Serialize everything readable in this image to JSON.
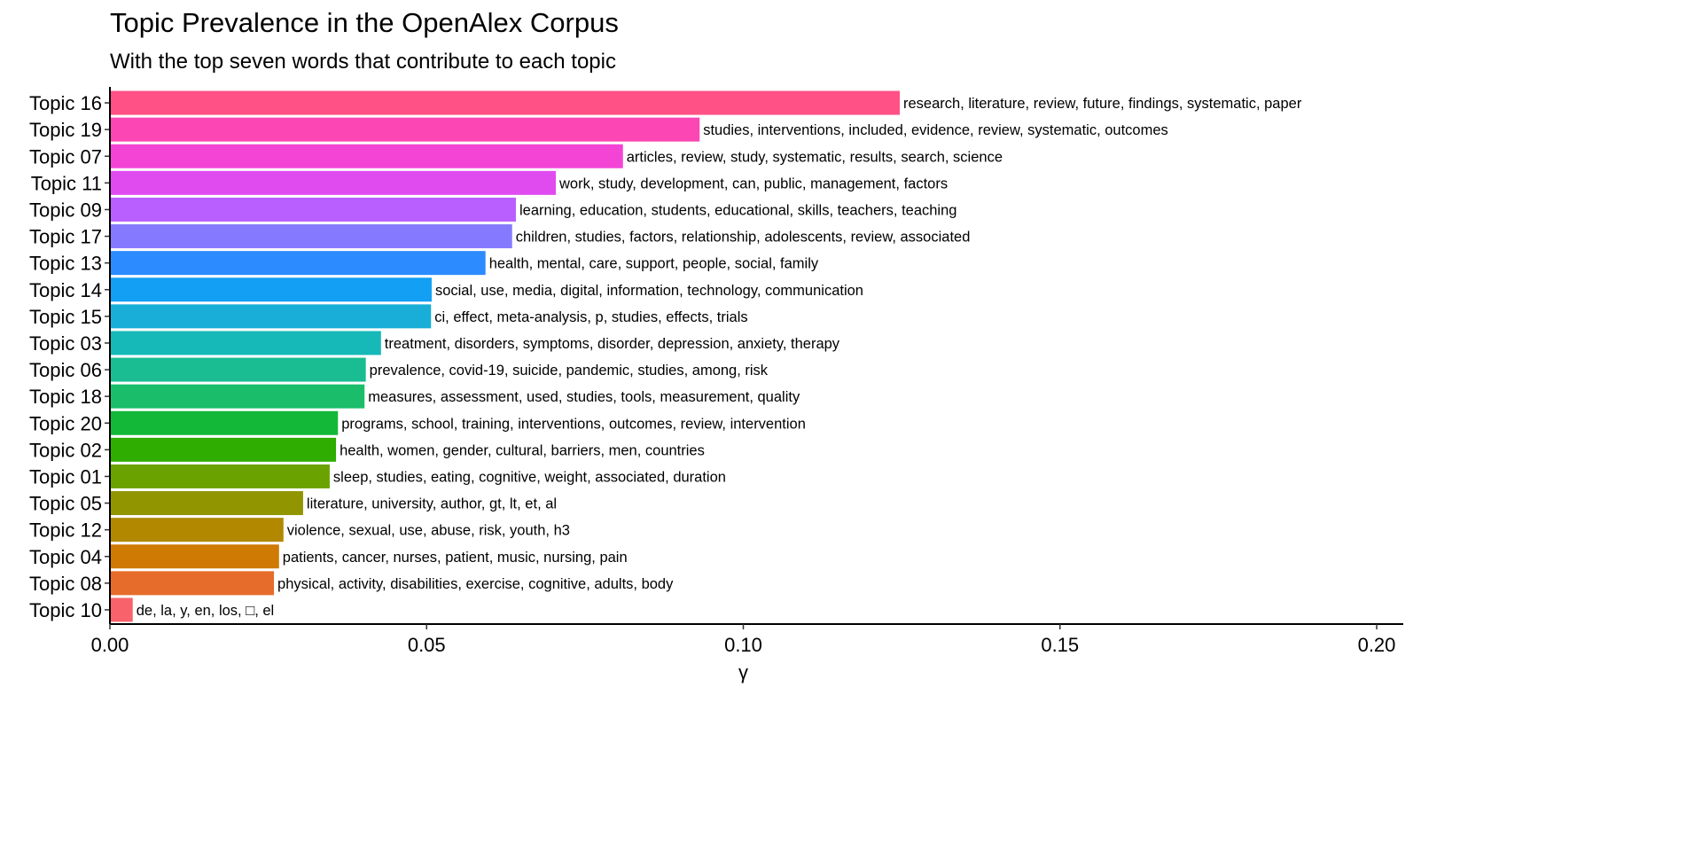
{
  "chart_data": {
    "type": "bar",
    "orientation": "horizontal",
    "title": "Topic Prevalence in the OpenAlex Corpus",
    "subtitle": "With the top seven words that contribute to each topic",
    "xlabel": "γ",
    "ylabel": "",
    "xlim": [
      0,
      0.2
    ],
    "xticks": [
      "0.00",
      "0.05",
      "0.10",
      "0.15",
      "0.20"
    ],
    "xtick_values": [
      0,
      0.05,
      0.1,
      0.15,
      0.2
    ],
    "grid": false,
    "bars": [
      {
        "category": "Topic 16",
        "value": 0.1247,
        "label": "research, literature, review, future, findings, systematic, paper",
        "color": "#FF5185"
      },
      {
        "category": "Topic 19",
        "value": 0.0931,
        "label": "studies, interventions, included, evidence, review, systematic, outcomes",
        "color": "#FB46B4"
      },
      {
        "category": "Topic 07",
        "value": 0.081,
        "label": "articles, review, study, systematic, results, search, science",
        "color": "#F344D6"
      },
      {
        "category": "Topic 11",
        "value": 0.0704,
        "label": "work, study, development, can, public, management, factors",
        "color": "#E04BF0"
      },
      {
        "category": "Topic 09",
        "value": 0.0641,
        "label": "learning, education, students, educational, skills, teachers, teaching",
        "color": "#BA5FFF"
      },
      {
        "category": "Topic 17",
        "value": 0.0635,
        "label": "children, studies, factors, relationship, adolescents, review, associated",
        "color": "#8579FF"
      },
      {
        "category": "Topic 13",
        "value": 0.0593,
        "label": "health, mental, care, support, people, social, family",
        "color": "#2C8CFF"
      },
      {
        "category": "Topic 14",
        "value": 0.0508,
        "label": "social, use, media, digital, information, technology, communication",
        "color": "#139FF3"
      },
      {
        "category": "Topic 15",
        "value": 0.0507,
        "label": "ci, effect, meta-analysis, p, studies, effects, trials",
        "color": "#18AED8"
      },
      {
        "category": "Topic 03",
        "value": 0.0428,
        "label": "treatment, disorders, symptoms, disorder, depression, anxiety, therapy",
        "color": "#16B8B8"
      },
      {
        "category": "Topic 06",
        "value": 0.0404,
        "label": "prevalence, covid-19, suicide, pandemic, studies, among, risk",
        "color": "#19BD91"
      },
      {
        "category": "Topic 18",
        "value": 0.0402,
        "label": "measures, assessment, used, studies, tools, measurement, quality",
        "color": "#1ABE6A"
      },
      {
        "category": "Topic 20",
        "value": 0.036,
        "label": "programs, school, training, interventions, outcomes, review, intervention",
        "color": "#14B838"
      },
      {
        "category": "Topic 02",
        "value": 0.0357,
        "label": "health, women, gender, cultural, barriers, men, countries",
        "color": "#2FAD00"
      },
      {
        "category": "Topic 01",
        "value": 0.0347,
        "label": "sleep, studies, eating, cognitive, weight, associated, duration",
        "color": "#6AA200"
      },
      {
        "category": "Topic 05",
        "value": 0.0305,
        "label": "literature, university, author, gt, lt, et, al",
        "color": "#919500"
      },
      {
        "category": "Topic 12",
        "value": 0.0274,
        "label": "violence, sexual, use, abuse, risk, youth, h3",
        "color": "#B18800"
      },
      {
        "category": "Topic 04",
        "value": 0.0267,
        "label": "patients, cancer, nurses, patient, music, nursing, pain",
        "color": "#CF7A03"
      },
      {
        "category": "Topic 08",
        "value": 0.0259,
        "label": "physical, activity, disabilities, exercise, cognitive, adults, body",
        "color": "#E66C2B"
      },
      {
        "category": "Topic 10",
        "value": 0.0036,
        "label": "de, la, y, en, los, □, el",
        "color": "#F8636B"
      }
    ]
  }
}
